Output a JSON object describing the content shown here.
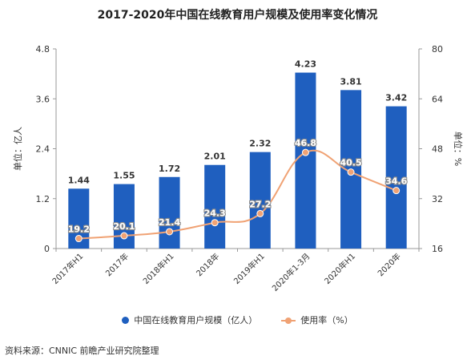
{
  "title": "2017-2020年中国在线教育用户规模及使用率变化情况",
  "source": "资料来源：CNNIC 前瞻产业研究院整理",
  "colors": {
    "bar": "#1f5fbf",
    "line": "#f0a274",
    "axis": "#999999",
    "text": "#333333"
  },
  "chart_data": {
    "type": "bar",
    "title": "2017-2020年中国在线教育用户规模及使用率变化情况",
    "categories": [
      "2017年H1",
      "2017年",
      "2018年H1",
      "2018年",
      "2019年H1",
      "2020年1-3月",
      "2020年H1",
      "2020年"
    ],
    "series": [
      {
        "name": "中国在线教育用户规模（亿人）",
        "type": "bar",
        "axis": "left",
        "values": [
          1.44,
          1.55,
          1.72,
          2.01,
          2.32,
          4.23,
          3.81,
          3.42
        ]
      },
      {
        "name": "使用率（%）",
        "type": "line",
        "axis": "right",
        "values": [
          19.2,
          20.1,
          21.4,
          24.3,
          27.2,
          46.8,
          40.5,
          34.6
        ]
      }
    ],
    "ylabel": "单位：亿人",
    "y2label": "单位：%",
    "ylim": [
      0,
      4.8
    ],
    "yticks": [
      "0",
      "1.2",
      "2.4",
      "3.6",
      "4.8"
    ],
    "y2lim": [
      16,
      80
    ],
    "y2ticks": [
      "16",
      "32",
      "48",
      "64",
      "80"
    ],
    "legend_position": "bottom",
    "grid": false
  }
}
